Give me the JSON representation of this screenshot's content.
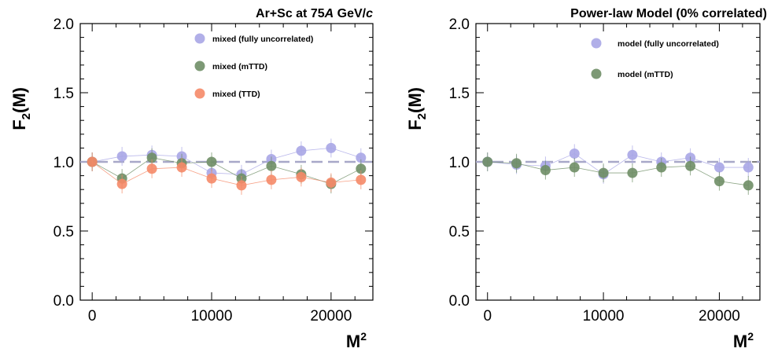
{
  "colors": {
    "uncorrelated": "#a9a6e6",
    "mttd": "#6f8e66",
    "ttd": "#f58a68",
    "reference_line": "#a8a8c8"
  },
  "chart_data": [
    {
      "type": "scatter",
      "title_parts": [
        "Ar+Sc at 75",
        "A",
        " GeV/",
        "c"
      ],
      "xlabel": "M",
      "xlabel_sup": "2",
      "ylabel": "F",
      "ylabel_sub": "2",
      "ylabel_rest": "(M)",
      "xlim": [
        -1000,
        23500
      ],
      "ylim": [
        0.0,
        2.0
      ],
      "xticks": [
        0,
        10000,
        20000
      ],
      "yticks": [
        0.0,
        0.5,
        1.0,
        1.5,
        2.0
      ],
      "ytick_labels": [
        "0.0",
        "0.5",
        "1.0",
        "1.5",
        "2.0"
      ],
      "reference_line": 1.0,
      "legend_position": "top-right",
      "x": [
        0,
        2500,
        5000,
        7500,
        10000,
        12500,
        15000,
        17500,
        20000,
        22500
      ],
      "series": [
        {
          "name": "mixed (fully uncorrelated)",
          "color_key": "uncorrelated",
          "values": [
            1.0,
            1.04,
            1.05,
            1.04,
            0.92,
            0.91,
            1.02,
            1.08,
            1.1,
            1.03
          ]
        },
        {
          "name": "mixed (mTTD)",
          "color_key": "mttd",
          "values": [
            1.0,
            0.88,
            1.03,
            0.99,
            1.0,
            0.88,
            0.97,
            0.91,
            0.84,
            0.95
          ]
        },
        {
          "name": "mixed (TTD)",
          "color_key": "ttd",
          "values": [
            1.0,
            0.84,
            0.95,
            0.96,
            0.88,
            0.83,
            0.87,
            0.89,
            0.85,
            0.87
          ]
        }
      ]
    },
    {
      "type": "scatter",
      "title_parts": [
        "Power-law Model (0% correlated)"
      ],
      "xlabel": "M",
      "xlabel_sup": "2",
      "ylabel": "F",
      "ylabel_sub": "2",
      "ylabel_rest": "(M)",
      "xlim": [
        -1000,
        23500
      ],
      "ylim": [
        0.0,
        2.0
      ],
      "xticks": [
        0,
        10000,
        20000
      ],
      "yticks": [
        0.0,
        0.5,
        1.0,
        1.5,
        2.0
      ],
      "ytick_labels": [
        "0.0",
        "0.5",
        "1.0",
        "1.5",
        "2.0"
      ],
      "reference_line": 1.0,
      "legend_position": "top-right",
      "x": [
        0,
        2500,
        5000,
        7500,
        10000,
        12500,
        15000,
        17500,
        20000,
        22500
      ],
      "series": [
        {
          "name": "model (fully uncorrelated)",
          "color_key": "uncorrelated",
          "values": [
            1.0,
            0.98,
            0.97,
            1.06,
            0.91,
            1.05,
            1.0,
            1.03,
            0.96,
            0.96
          ]
        },
        {
          "name": "model (mTTD)",
          "color_key": "mttd",
          "values": [
            1.0,
            0.99,
            0.94,
            0.96,
            0.92,
            0.92,
            0.96,
            0.97,
            0.86,
            0.83
          ]
        }
      ]
    }
  ]
}
